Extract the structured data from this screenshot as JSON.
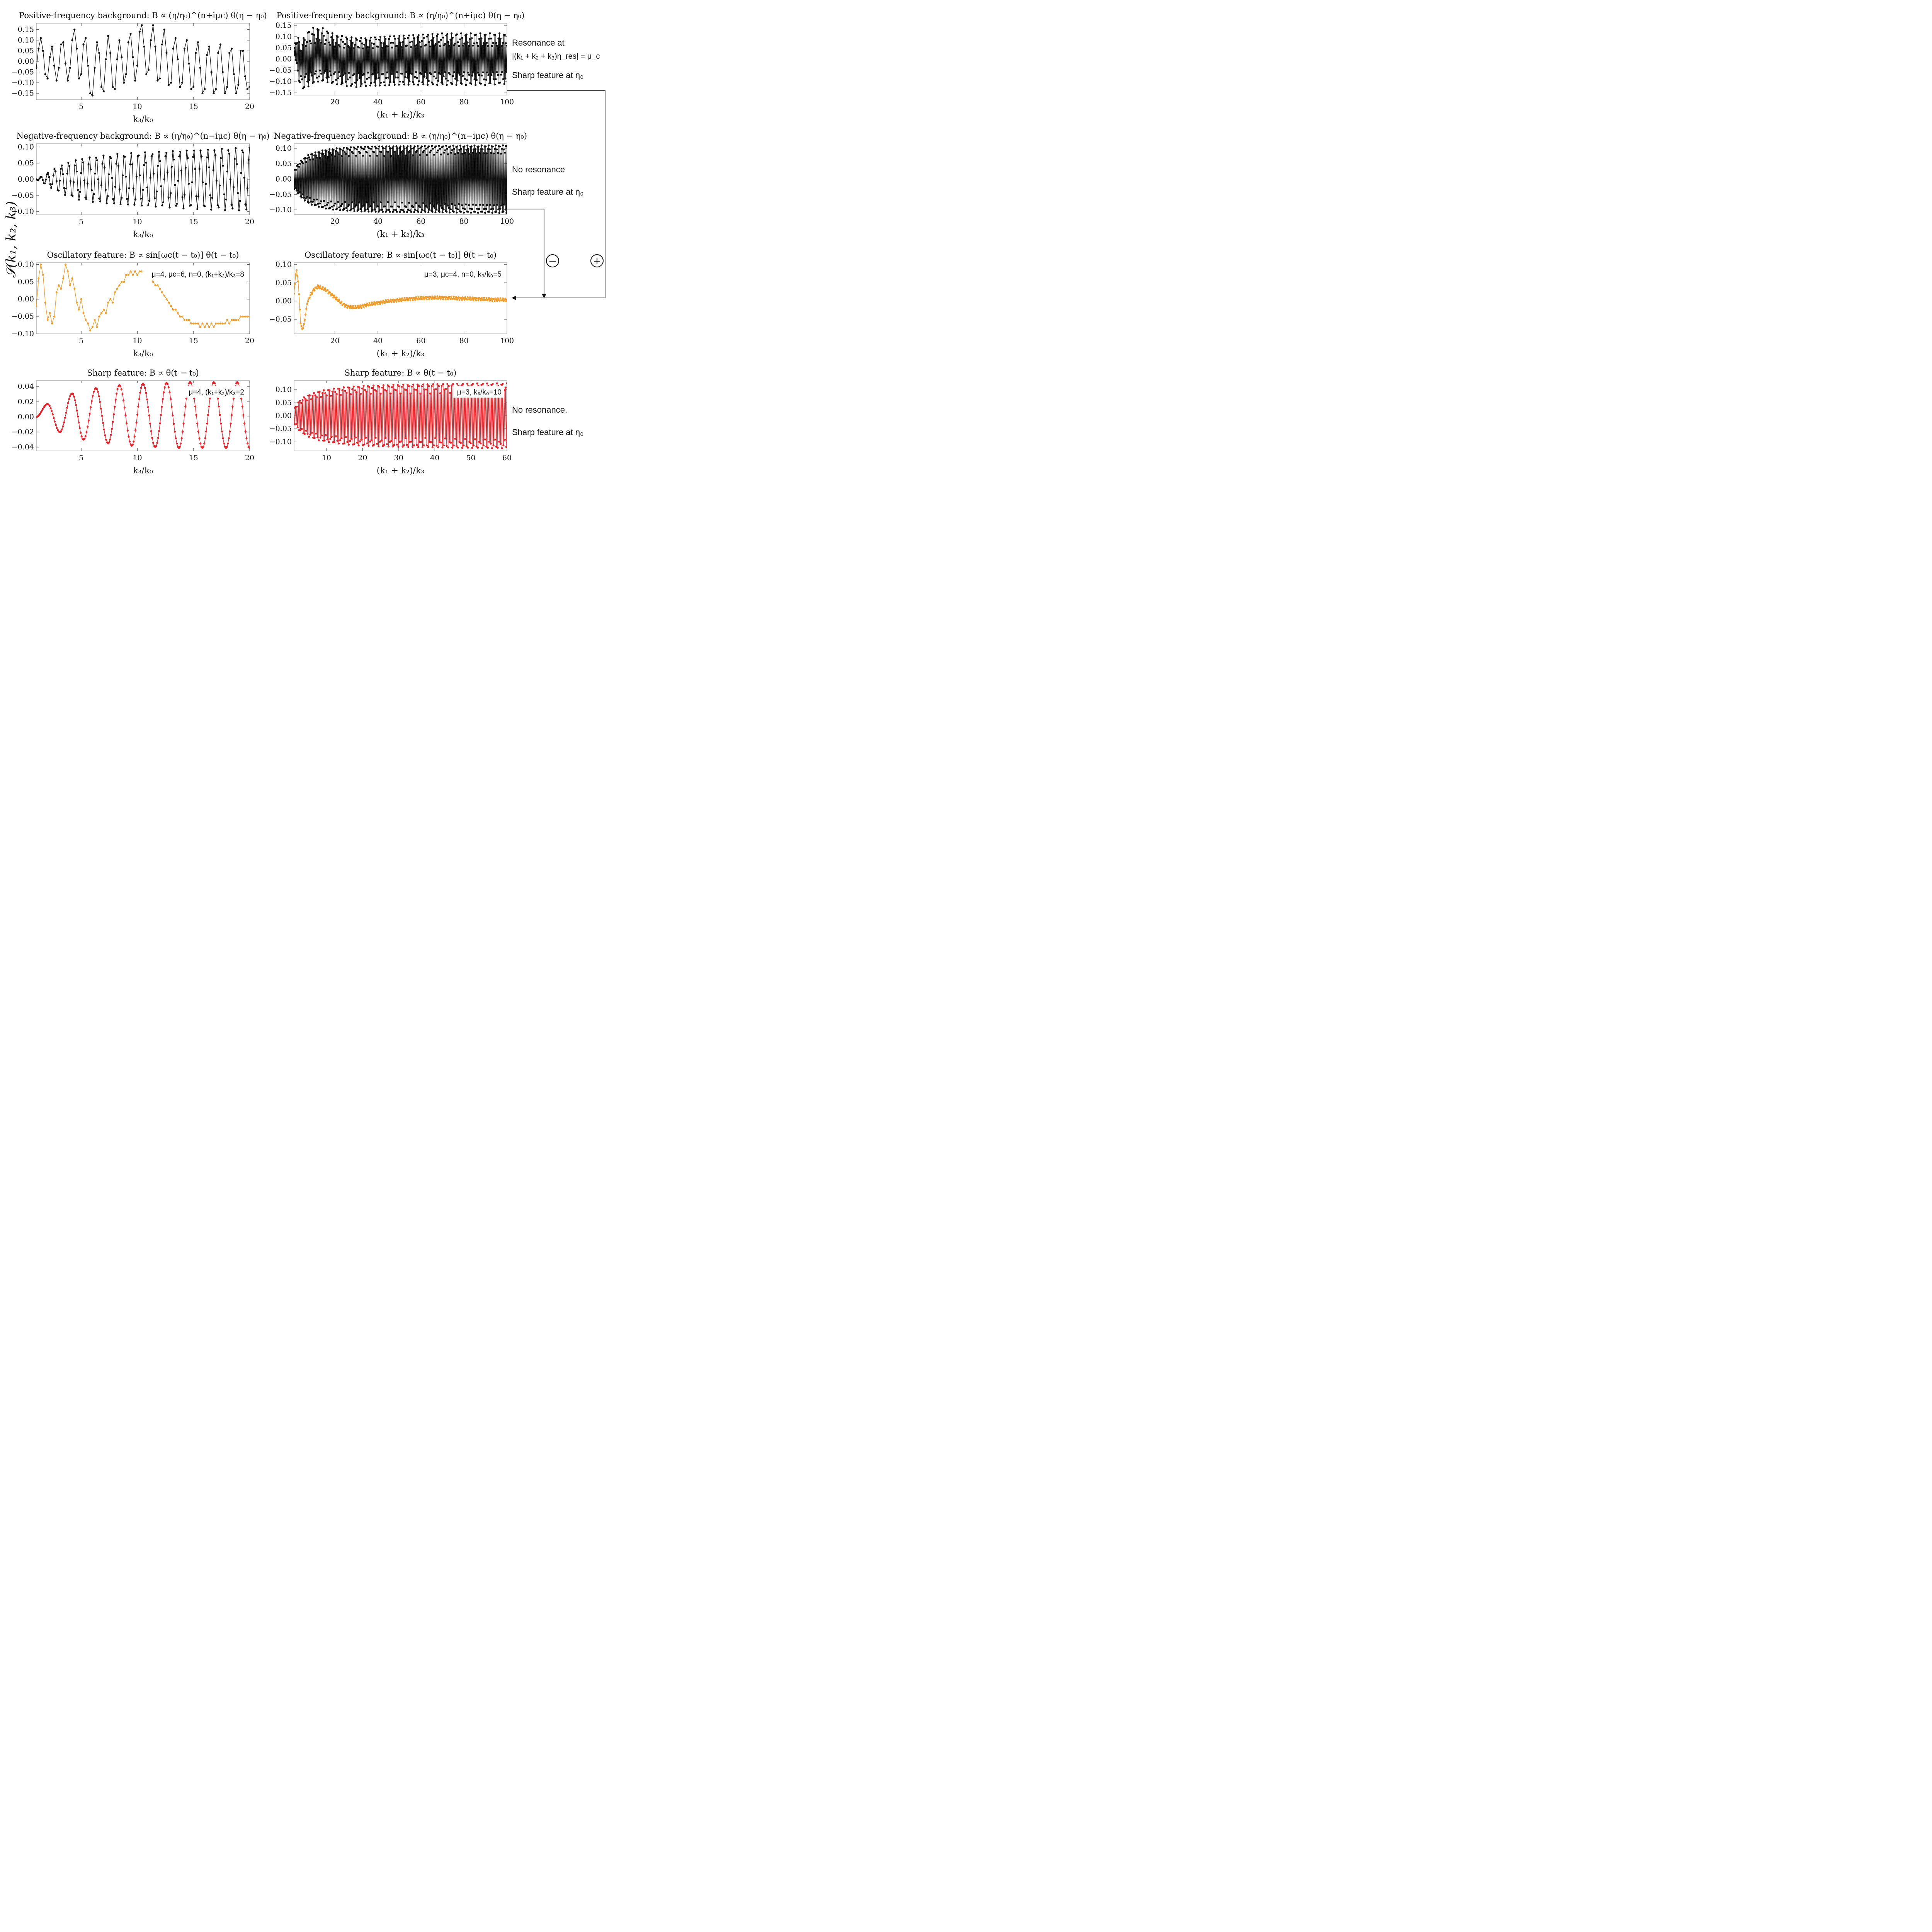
{
  "figure": {
    "y_label": "𝒮(k₁, k₂, k₃)",
    "minus_symbol": "−",
    "plus_symbol": "+",
    "arrow_color": "#111111"
  },
  "side_notes": {
    "top_right_1": "Resonance at",
    "top_right_2": "|(k₁ + k₂ + k₃)η_res| = μ_c",
    "top_right_3": "Sharp feature at η₀",
    "mid_right_1": "No resonance",
    "mid_right_2": "Sharp feature at η₀",
    "bot_right_1": "No resonance.",
    "bot_right_2": "Sharp feature at η₀"
  },
  "chart_data": [
    {
      "id": "p1",
      "type": "line",
      "color": "#111111",
      "title": "Positive-frequency background: B ∝ (η/η₀)^(n+iμc) θ(η − η₀)",
      "xlabel": "k₃/k₀",
      "ylabel": "",
      "xlim": [
        1,
        20
      ],
      "ylim": [
        -0.18,
        0.18
      ],
      "xticks": [
        5,
        10,
        15,
        20
      ],
      "yticks": [
        -0.15,
        -0.1,
        -0.05,
        0.0,
        0.05,
        0.1,
        0.15
      ],
      "ytick_labels": [
        "−0.15",
        "−0.10",
        "−0.05",
        "0.00",
        "0.05",
        "0.10",
        "0.15"
      ],
      "annotation": "",
      "series": [
        {
          "name": "positive-frequency background",
          "x": [
            1,
            1.2,
            1.4,
            1.6,
            1.8,
            2,
            2.2,
            2.4,
            2.6,
            2.8,
            3,
            3.2,
            3.4,
            3.6,
            3.8,
            4,
            4.2,
            4.4,
            4.6,
            4.8,
            5,
            5.2,
            5.4,
            5.6,
            5.8,
            6,
            6.2,
            6.4,
            6.6,
            6.8,
            7,
            7.2,
            7.4,
            7.6,
            7.8,
            8,
            8.2,
            8.4,
            8.6,
            8.8,
            9,
            9.2,
            9.4,
            9.6,
            9.8,
            10,
            10.2,
            10.4,
            10.6,
            10.8,
            11,
            11.2,
            11.4,
            11.6,
            11.8,
            12,
            12.2,
            12.4,
            12.6,
            12.8,
            13,
            13.2,
            13.4,
            13.6,
            13.8,
            14,
            14.2,
            14.4,
            14.6,
            14.8,
            15,
            15.2,
            15.4,
            15.6,
            15.8,
            16,
            16.2,
            16.4,
            16.6,
            16.8,
            17,
            17.2,
            17.4,
            17.6,
            17.8,
            18,
            18.2,
            18.4,
            18.6,
            18.8,
            19,
            19.2,
            19.4,
            19.6,
            19.8,
            20
          ],
          "y": [
            -0.03,
            0.06,
            0.11,
            0.05,
            -0.06,
            -0.08,
            0.02,
            0.07,
            -0.02,
            -0.09,
            -0.03,
            0.08,
            0.09,
            -0.01,
            -0.09,
            -0.03,
            0.1,
            0.15,
            0.06,
            -0.08,
            -0.06,
            0.08,
            0.11,
            -0.02,
            -0.15,
            -0.16,
            -0.03,
            0.09,
            0.04,
            -0.12,
            -0.14,
            0.01,
            0.12,
            0.04,
            -0.12,
            -0.13,
            0.01,
            0.1,
            0.02,
            -0.1,
            -0.06,
            0.09,
            0.13,
            0.02,
            -0.09,
            -0.02,
            0.14,
            0.17,
            0.07,
            -0.06,
            -0.04,
            0.1,
            0.17,
            0.07,
            -0.09,
            -0.08,
            0.08,
            0.15,
            0.04,
            -0.11,
            -0.1,
            0.06,
            0.11,
            0.01,
            -0.12,
            -0.1,
            0.06,
            0.1,
            -0.01,
            -0.13,
            -0.12,
            0.04,
            0.09,
            -0.03,
            -0.15,
            -0.13,
            0.03,
            0.07,
            -0.05,
            -0.15,
            -0.13,
            0.04,
            0.08,
            -0.05,
            -0.15,
            -0.12,
            0.04,
            0.06,
            -0.06,
            -0.15,
            -0.11,
            0.05,
            0.05,
            -0.07,
            -0.13,
            -0.12
          ]
        }
      ]
    },
    {
      "id": "p2",
      "type": "line",
      "color": "#111111",
      "title": "Positive-frequency background: B ∝ (η/η₀)^(n+iμc) θ(η − η₀)",
      "xlabel": "(k₁ + k₂)/k₃",
      "ylabel": "",
      "xlim": [
        1,
        100
      ],
      "ylim": [
        -0.16,
        0.16
      ],
      "xticks": [
        20,
        40,
        60,
        80,
        100
      ],
      "yticks": [
        -0.15,
        -0.1,
        -0.05,
        0.0,
        0.05,
        0.1,
        0.15
      ],
      "ytick_labels": [
        "−0.15",
        "−0.10",
        "−0.05",
        "0.00",
        "0.05",
        "0.10",
        "0.15"
      ],
      "annotation": "",
      "series": [
        {
          "name": "envelope upper",
          "x": [
            1,
            2,
            3,
            4,
            5,
            6,
            8,
            10,
            12,
            14,
            16,
            18,
            20,
            25,
            30,
            35,
            40,
            50,
            60,
            70,
            80,
            90,
            100
          ],
          "y": [
            0.05,
            0.13,
            0.1,
            0.06,
            0.08,
            0.11,
            0.13,
            0.14,
            0.14,
            0.14,
            0.13,
            0.12,
            0.11,
            0.1,
            0.095,
            0.095,
            0.1,
            0.105,
            0.11,
            0.115,
            0.115,
            0.115,
            0.115
          ]
        },
        {
          "name": "envelope lower",
          "x": [
            1,
            2,
            3,
            4,
            5,
            6,
            8,
            10,
            12,
            14,
            16,
            18,
            20,
            25,
            30,
            35,
            40,
            50,
            60,
            70,
            80,
            90,
            100
          ],
          "y": [
            0.03,
            -0.02,
            -0.08,
            -0.15,
            -0.14,
            -0.13,
            -0.12,
            -0.11,
            -0.1,
            -0.1,
            -0.1,
            -0.11,
            -0.11,
            -0.12,
            -0.125,
            -0.12,
            -0.12,
            -0.115,
            -0.115,
            -0.115,
            -0.115,
            -0.115,
            -0.11
          ]
        }
      ]
    },
    {
      "id": "p3",
      "type": "line",
      "color": "#111111",
      "title": "Negative-frequency background: B ∝ (η/η₀)^(n−iμc) θ(η − η₀)",
      "xlabel": "k₃/k₀",
      "ylabel": "",
      "xlim": [
        1,
        20
      ],
      "ylim": [
        -0.11,
        0.11
      ],
      "xticks": [
        5,
        10,
        15,
        20
      ],
      "yticks": [
        -0.1,
        -0.05,
        0.0,
        0.05,
        0.1
      ],
      "ytick_labels": [
        "−0.10",
        "−0.05",
        "0.00",
        "0.05",
        "0.10"
      ],
      "annotation": "",
      "series": [
        {
          "name": "envelope",
          "x": [
            1,
            1.5,
            2,
            3,
            4,
            5,
            6,
            8,
            10,
            12,
            14,
            16,
            18,
            20
          ],
          "y": [
            0.0,
            0.01,
            0.02,
            0.04,
            0.055,
            0.065,
            0.07,
            0.078,
            0.082,
            0.086,
            0.09,
            0.093,
            0.096,
            0.098
          ]
        }
      ]
    },
    {
      "id": "p4",
      "type": "line",
      "color": "#111111",
      "title": "Negative-frequency background: B ∝ (η/η₀)^(n−iμc) θ(η − η₀)",
      "xlabel": "(k₁ + k₂)/k₃",
      "ylabel": "",
      "xlim": [
        1,
        100
      ],
      "ylim": [
        -0.115,
        0.115
      ],
      "xticks": [
        20,
        40,
        60,
        80,
        100
      ],
      "yticks": [
        -0.1,
        -0.05,
        0.0,
        0.05,
        0.1
      ],
      "ytick_labels": [
        "−0.10",
        "−0.05",
        "0.00",
        "0.05",
        "0.10"
      ],
      "annotation": "",
      "series": [
        {
          "name": "envelope",
          "x": [
            1,
            3,
            5,
            8,
            10,
            15,
            20,
            30,
            40,
            60,
            80,
            100
          ],
          "y": [
            0.03,
            0.05,
            0.065,
            0.08,
            0.085,
            0.095,
            0.1,
            0.105,
            0.107,
            0.108,
            0.109,
            0.11
          ]
        }
      ]
    },
    {
      "id": "p5",
      "type": "line",
      "color": "#f39c2a",
      "title": "Oscillatory feature: B ∝ sin[ωc(t − t₀)] θ(t − t₀)",
      "xlabel": "k₃/k₀",
      "ylabel": "",
      "xlim": [
        1,
        20
      ],
      "ylim": [
        -0.1,
        0.105
      ],
      "xticks": [
        5,
        10,
        15,
        20
      ],
      "yticks": [
        -0.1,
        -0.05,
        0.0,
        0.05,
        0.1
      ],
      "ytick_labels": [
        "−0.10",
        "−0.05",
        "0.00",
        "0.05",
        "0.10"
      ],
      "annotation": "μ=4, μc=6, n=0, (k₁+k₂)/k₃=8",
      "series": [
        {
          "name": "oscillatory feature",
          "x": [
            1,
            1.2,
            1.4,
            1.6,
            1.8,
            2,
            2.2,
            2.4,
            2.6,
            2.8,
            3,
            3.2,
            3.4,
            3.6,
            3.8,
            4,
            4.2,
            4.4,
            4.6,
            4.8,
            5,
            5.2,
            5.4,
            5.6,
            5.8,
            6,
            6.2,
            6.4,
            6.6,
            6.8,
            7,
            7.2,
            7.4,
            7.6,
            7.8,
            8,
            8.2,
            8.4,
            8.6,
            8.8,
            9,
            9.2,
            9.4,
            9.6,
            9.8,
            10,
            10.2,
            10.4,
            10.6,
            10.8,
            11,
            11.2,
            11.4,
            11.6,
            11.8,
            12,
            12.2,
            12.4,
            12.6,
            12.8,
            13,
            13.2,
            13.4,
            13.6,
            13.8,
            14,
            14.2,
            14.4,
            14.6,
            14.8,
            15,
            15.2,
            15.4,
            15.6,
            15.8,
            16,
            16.2,
            16.4,
            16.6,
            16.8,
            17,
            17.2,
            17.4,
            17.6,
            17.8,
            18,
            18.2,
            18.4,
            18.6,
            18.8,
            19,
            19.2,
            19.4,
            19.6,
            19.8,
            20
          ],
          "y": [
            -0.02,
            0.06,
            0.1,
            0.07,
            -0.01,
            -0.06,
            -0.04,
            -0.07,
            -0.05,
            0.02,
            0.04,
            0.03,
            0.06,
            0.1,
            0.08,
            0.04,
            0.06,
            0.03,
            -0.01,
            -0.03,
            0.0,
            -0.04,
            -0.06,
            -0.07,
            -0.09,
            -0.08,
            -0.06,
            -0.08,
            -0.05,
            -0.04,
            -0.03,
            -0.04,
            -0.01,
            0.0,
            -0.01,
            0.02,
            0.03,
            0.04,
            0.05,
            0.05,
            0.07,
            0.07,
            0.08,
            0.07,
            0.08,
            0.07,
            0.08,
            0.08,
            0.07,
            0.06,
            0.07,
            0.06,
            0.05,
            0.04,
            0.04,
            0.03,
            0.02,
            0.01,
            0.0,
            -0.01,
            -0.02,
            -0.03,
            -0.03,
            -0.04,
            -0.05,
            -0.05,
            -0.06,
            -0.06,
            -0.06,
            -0.07,
            -0.07,
            -0.07,
            -0.07,
            -0.08,
            -0.07,
            -0.08,
            -0.07,
            -0.08,
            -0.07,
            -0.08,
            -0.07,
            -0.07,
            -0.07,
            -0.07,
            -0.07,
            -0.06,
            -0.07,
            -0.06,
            -0.06,
            -0.06,
            -0.06,
            -0.05,
            -0.05,
            -0.05,
            -0.05,
            -0.05
          ]
        }
      ]
    },
    {
      "id": "p6",
      "type": "line",
      "color": "#f39c2a",
      "title": "Oscillatory feature: B ∝ sin[ωc(t − t₀)] θ(t − t₀)",
      "xlabel": "(k₁ + k₂)/k₃",
      "ylabel": "",
      "xlim": [
        1,
        100
      ],
      "ylim": [
        -0.09,
        0.105
      ],
      "xticks": [
        20,
        40,
        60,
        80,
        100
      ],
      "yticks": [
        -0.05,
        0.0,
        0.05,
        0.1
      ],
      "ytick_labels": [
        "−0.05",
        "0.00",
        "0.05",
        "0.10"
      ],
      "annotation": "μ=3, μc=4, n=0, k₃/k₀=5",
      "series": [
        {
          "name": "oscillatory feature",
          "x": [
            1,
            2,
            3,
            4,
            5,
            6,
            7,
            8,
            9,
            10,
            12,
            14,
            16,
            18,
            20,
            22,
            24,
            26,
            28,
            30,
            32,
            35,
            40,
            45,
            50,
            55,
            60,
            65,
            70,
            75,
            80,
            85,
            90,
            95,
            100
          ],
          "y": [
            0.02,
            0.09,
            0.05,
            -0.06,
            -0.08,
            -0.05,
            -0.01,
            0.01,
            0.02,
            0.03,
            0.04,
            0.035,
            0.03,
            0.02,
            0.01,
            0.0,
            -0.01,
            -0.015,
            -0.017,
            -0.017,
            -0.015,
            -0.01,
            -0.005,
            0.0,
            0.003,
            0.006,
            0.008,
            0.009,
            0.009,
            0.008,
            0.007,
            0.006,
            0.005,
            0.004,
            0.003
          ]
        }
      ]
    },
    {
      "id": "p7",
      "type": "line",
      "color": "#e8232a",
      "title": "Sharp feature: B ∝ θ(t − t₀)",
      "xlabel": "k₃/k₀",
      "ylabel": "",
      "xlim": [
        1,
        20
      ],
      "ylim": [
        -0.045,
        0.048
      ],
      "xticks": [
        5,
        10,
        15,
        20
      ],
      "yticks": [
        -0.04,
        -0.02,
        0.0,
        0.02,
        0.04
      ],
      "ytick_labels": [
        "−0.04",
        "−0.02",
        "0.00",
        "0.02",
        "0.04"
      ],
      "annotation": "μ=4, (k₁+k₂)/k₃=2",
      "series": [
        {
          "name": "sharp feature (peaks)",
          "x": [
            1,
            2.0,
            3.1,
            4.2,
            5.2,
            6.3,
            7.4,
            8.4,
            9.5,
            10.5,
            11.6,
            12.6,
            13.7,
            14.7,
            15.8,
            16.8,
            17.9,
            18.9,
            20
          ],
          "y": [
            0.0,
            0.017,
            -0.02,
            0.031,
            -0.03,
            0.038,
            -0.035,
            0.042,
            -0.038,
            0.044,
            -0.04,
            0.045,
            -0.041,
            0.046,
            -0.041,
            0.046,
            -0.041,
            0.046,
            -0.041
          ]
        }
      ]
    },
    {
      "id": "p8",
      "type": "line",
      "color": "#e8232a",
      "title": "Sharp feature: B ∝ θ(t − t₀)",
      "xlabel": "(k₁ + k₂)/k₃",
      "ylabel": "",
      "xlim": [
        1,
        60
      ],
      "ylim": [
        -0.135,
        0.135
      ],
      "xticks": [
        10,
        20,
        30,
        40,
        50,
        60
      ],
      "yticks": [
        -0.1,
        -0.05,
        0.0,
        0.05,
        0.1
      ],
      "ytick_labels": [
        "−0.10",
        "−0.05",
        "0.00",
        "0.05",
        "0.10"
      ],
      "annotation": "μ=3, k₃/k₀=10",
      "series": [
        {
          "name": "envelope",
          "x": [
            1,
            2,
            3,
            5,
            8,
            10,
            15,
            20,
            30,
            40,
            50,
            60
          ],
          "y": [
            0.03,
            0.05,
            0.065,
            0.08,
            0.095,
            0.1,
            0.11,
            0.115,
            0.12,
            0.122,
            0.124,
            0.125
          ]
        }
      ]
    }
  ]
}
